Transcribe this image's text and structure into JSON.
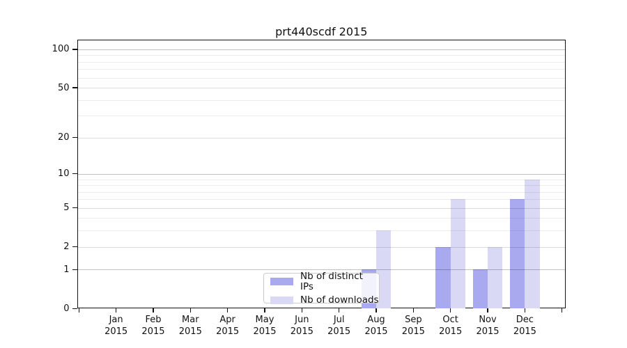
{
  "chart_data": {
    "type": "bar",
    "title": "prt440scdf 2015",
    "categories": [
      "Jan",
      "Feb",
      "Mar",
      "Apr",
      "May",
      "Jun",
      "Jul",
      "Aug",
      "Sep",
      "Oct",
      "Nov",
      "Dec"
    ],
    "x_sublabel_year": "2015",
    "series": [
      {
        "name": "Nb of distinct IPs",
        "color": "#a9a9f0",
        "values": [
          0,
          0,
          0,
          0,
          0,
          0,
          0,
          1,
          0,
          2,
          1,
          6
        ]
      },
      {
        "name": "Nb of downloads",
        "color": "#d9d9f6",
        "values": [
          0,
          0,
          0,
          0,
          0,
          0,
          0,
          3,
          0,
          6,
          2,
          9
        ]
      }
    ],
    "y_scale": "log1p",
    "y_ticks": [
      0,
      1,
      2,
      5,
      10,
      20,
      50,
      100
    ],
    "y_minor_gridlines": [
      3,
      4,
      6,
      7,
      8,
      9,
      30,
      40,
      60,
      70,
      80,
      90
    ],
    "y_mid_gridlines": [
      2,
      5,
      20,
      50
    ],
    "y_major_gridlines": [
      1,
      10,
      100
    ],
    "ylim": [
      0,
      120
    ],
    "grid": true,
    "legend_position": "lower center",
    "xlabel": "",
    "ylabel": ""
  }
}
